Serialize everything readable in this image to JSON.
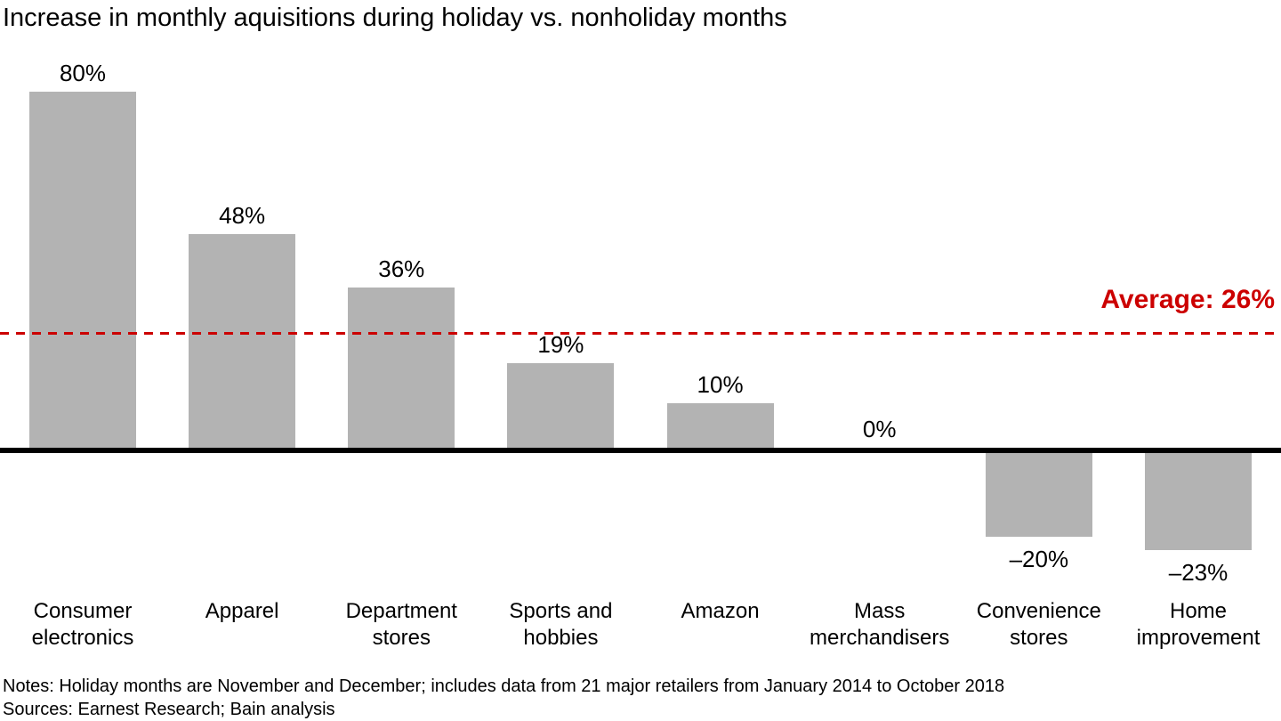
{
  "chart_data": {
    "type": "bar",
    "title": "Increase in monthly aquisitions during holiday vs. nonholiday months",
    "categories": [
      "Consumer\nelectronics",
      "Apparel",
      "Department\nstores",
      "Sports and\nhobbies",
      "Amazon",
      "Mass\nmerchandisers",
      "Convenience\nstores",
      "Home\nimprovement"
    ],
    "values": [
      80,
      48,
      36,
      19,
      10,
      0,
      -20,
      -23
    ],
    "value_labels": [
      "80%",
      "48%",
      "36%",
      "19%",
      "10%",
      "0%",
      "–20%",
      "–23%"
    ],
    "average_value": 26,
    "average_label": "Average: 26%",
    "ylim": [
      -30,
      88
    ],
    "grid": false,
    "legend": "none",
    "bar_color": "#b3b3b3",
    "average_color": "#cc0000",
    "axis_color": "#000000"
  },
  "notes": {
    "line1": "Notes: Holiday months are November and December; includes data from 21 major retailers from January 2014 to October 2018",
    "line2": "Sources: Earnest Research; Bain analysis"
  }
}
